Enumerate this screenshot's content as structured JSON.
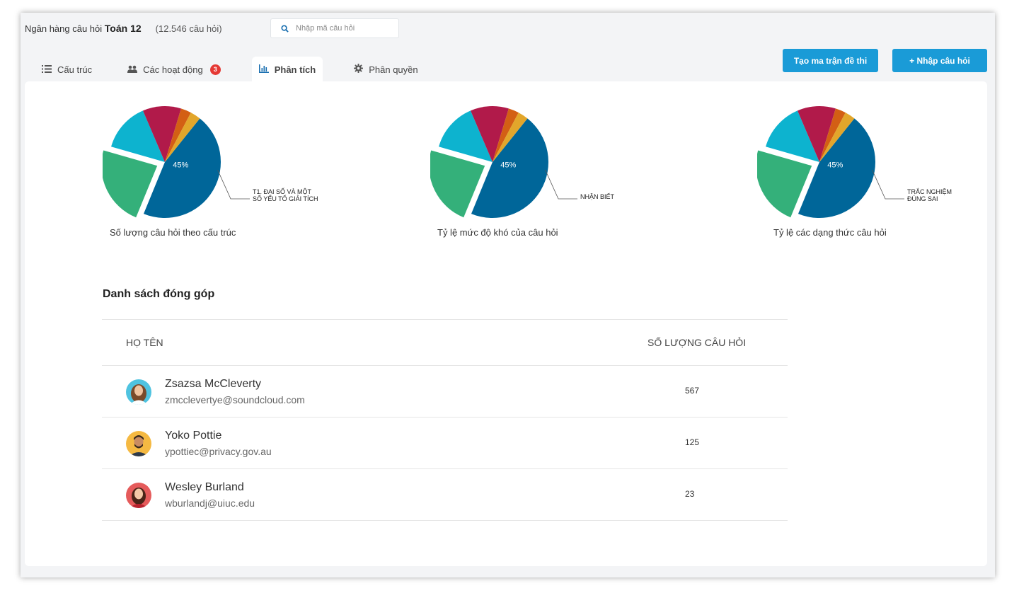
{
  "header": {
    "bank_prefix": "Ngân hàng câu hỏi",
    "bank_subject": "Toán 12",
    "bank_count": "(12.546 câu hỏi)",
    "search_placeholder": "Nhập mã câu hỏi"
  },
  "tabs": [
    {
      "label": "Cấu trúc",
      "icon": "list-icon"
    },
    {
      "label": "Các hoạt động",
      "icon": "users-icon",
      "badge": "3"
    },
    {
      "label": "Phân tích",
      "icon": "bar-chart-icon",
      "active": true
    },
    {
      "label": "Phân quyền",
      "icon": "gear-icon"
    }
  ],
  "actions": {
    "matrix_label": "Tạo ma trận đề thi",
    "import_label": "+ Nhập câu hỏi"
  },
  "colors": {
    "accent": "#1a9bd7",
    "badge": "#e53935",
    "pie": [
      "#006699",
      "#34b07a",
      "#0db3cf",
      "#b11a4a",
      "#d35f14",
      "#e2a62b"
    ]
  },
  "chart_data": [
    {
      "type": "pie",
      "title": "Số lượng câu hỏi theo cấu trúc",
      "values": [
        45,
        23,
        14,
        11,
        3,
        3
      ],
      "slice_labels": [
        "45%",
        "",
        "",
        "",
        "",
        ""
      ],
      "callout": [
        "T1. ĐẠI SỐ VÀ MỘT",
        "SỐ YẾU TỐ GIẢI TÍCH"
      ],
      "exploded_index": 1
    },
    {
      "type": "pie",
      "title": "Tỷ lệ mức độ khó của câu hỏi",
      "values": [
        45,
        23,
        14,
        11,
        3,
        3
      ],
      "slice_labels": [
        "45%",
        "",
        "",
        "",
        "",
        ""
      ],
      "callout": [
        "NHẬN BIẾT"
      ],
      "exploded_index": 1
    },
    {
      "type": "pie",
      "title": "Tỷ lệ các dạng thức câu hỏi",
      "values": [
        45,
        23,
        14,
        11,
        3,
        3
      ],
      "slice_labels": [
        "45%",
        "",
        "",
        "",
        "",
        ""
      ],
      "callout": [
        "TRẮC NGHIỆM",
        "ĐÚNG SAI"
      ],
      "exploded_index": 1
    }
  ],
  "contributions": {
    "title": "Danh sách đóng góp",
    "col_name": "HỌ TÊN",
    "col_count": "SỐ LƯỢNG CÂU HỎI",
    "rows": [
      {
        "name": "Zsazsa McCleverty",
        "email": "zmcclevertye@soundcloud.com",
        "count": "567"
      },
      {
        "name": "Yoko Pottie",
        "email": "ypottiec@privacy.gov.au",
        "count": "125"
      },
      {
        "name": "Wesley Burland",
        "email": "wburlandj@uiuc.edu",
        "count": "23"
      }
    ]
  }
}
